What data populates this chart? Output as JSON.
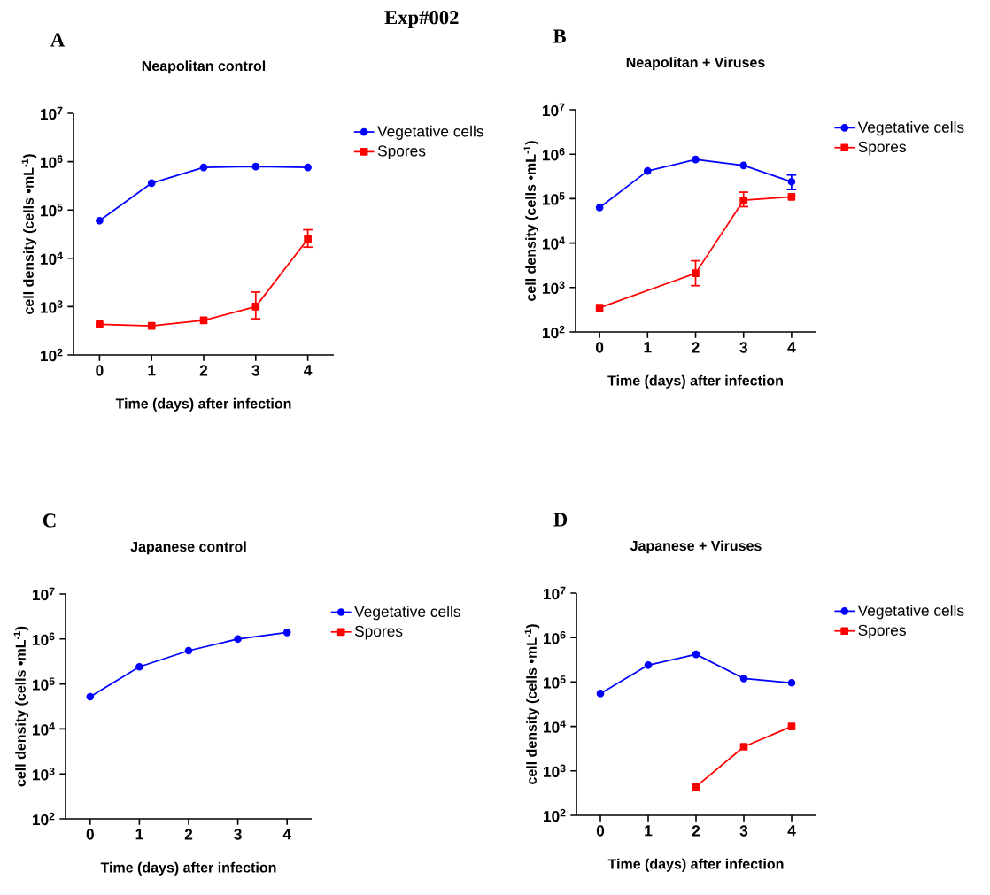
{
  "chart_data": [
    {
      "type": "line",
      "title": "Neapolitan control",
      "xlabel": "Time (days) after infection",
      "ylabel": "cell density (cells •mL$^{-1}$)",
      "annotations": [
        "A",
        "Exp#002"
      ],
      "log": true,
      "legend": "top right",
      "x": [
        0,
        1,
        2,
        3,
        4
      ],
      "xlim": [
        -0.5,
        4.5
      ],
      "xticks": [
        0,
        1,
        2,
        3,
        4
      ],
      "ylim": [
        100,
        10000000
      ],
      "yticks": [
        {
          "value": 100,
          "label": "10$^{2}$"
        },
        {
          "value": 1000,
          "label": "10$^{3}$"
        },
        {
          "value": 10000,
          "label": "10$^{4}$"
        },
        {
          "value": 100000,
          "label": "10$^{5}$"
        },
        {
          "value": 1000000,
          "label": "10$^{6}$"
        },
        {
          "value": 10000000,
          "label": "10$^{7}$"
        }
      ],
      "series": [
        {
          "name": "Vegetative cells",
          "color": "#0000ff",
          "marker": "circle",
          "values": [
            60000,
            360000,
            760000,
            790000,
            760000
          ]
        },
        {
          "name": "Spores",
          "color": "#ff0000",
          "marker": "square",
          "values": [
            430,
            400,
            520,
            1000,
            25000
          ],
          "errors": [
            null,
            null,
            null,
            [
              560,
              2000
            ],
            [
              17000,
              39000
            ]
          ]
        }
      ]
    },
    {
      "type": "line",
      "title": "Neapolitan + Viruses",
      "xlabel": "Time (days) after infection",
      "ylabel": "cell density (cells •mL$^{-1}$)",
      "annotations": [
        "B"
      ],
      "log": true,
      "legend": "top right",
      "x": [
        0,
        1,
        2,
        3,
        4
      ],
      "xlim": [
        -0.5,
        4.5
      ],
      "xticks": [
        0,
        1,
        2,
        3,
        4
      ],
      "ylim": [
        100,
        10000000
      ],
      "yticks": [
        {
          "value": 100,
          "label": "10$^{2}$"
        },
        {
          "value": 1000,
          "label": "10$^{3}$"
        },
        {
          "value": 10000,
          "label": "10$^{4}$"
        },
        {
          "value": 100000,
          "label": "10$^{5}$"
        },
        {
          "value": 1000000,
          "label": "10$^{6}$"
        },
        {
          "value": 10000000,
          "label": "10$^{7}$"
        }
      ],
      "series": [
        {
          "name": "Vegetative cells",
          "color": "#0000ff",
          "marker": "circle",
          "values": [
            63000,
            420000,
            760000,
            560000,
            240000
          ],
          "errors": [
            null,
            null,
            null,
            null,
            [
              160000,
              340000
            ]
          ]
        },
        {
          "name": "Spores",
          "color": "#ff0000",
          "marker": "square",
          "x": [
            0,
            2,
            3,
            4
          ],
          "values": [
            350,
            2100,
            92000,
            110000
          ],
          "errors": [
            null,
            [
              1100,
              4000
            ],
            [
              66000,
              140000
            ],
            null
          ]
        }
      ]
    },
    {
      "type": "line",
      "title": "Japanese control",
      "xlabel": "Time (days) after infection",
      "ylabel": "cell density (cells •mL$^{-1}$)",
      "annotations": [
        "C"
      ],
      "log": true,
      "legend": "top right",
      "x": [
        0,
        1,
        2,
        3,
        4
      ],
      "xlim": [
        -0.5,
        4.5
      ],
      "xticks": [
        0,
        1,
        2,
        3,
        4
      ],
      "ylim": [
        100,
        10000000
      ],
      "yticks": [
        {
          "value": 100,
          "label": "10$^{2}$"
        },
        {
          "value": 1000,
          "label": "10$^{3}$"
        },
        {
          "value": 10000,
          "label": "10$^{4}$"
        },
        {
          "value": 100000,
          "label": "10$^{5}$"
        },
        {
          "value": 1000000,
          "label": "10$^{6}$"
        },
        {
          "value": 10000000,
          "label": "10$^{7}$"
        }
      ],
      "series": [
        {
          "name": "Vegetative cells",
          "color": "#0000ff",
          "marker": "circle",
          "values": [
            52000,
            240000,
            550000,
            1000000,
            1400000
          ]
        },
        {
          "name": "Spores",
          "color": "#ff0000",
          "marker": "square",
          "values": [
            null,
            null,
            null,
            null,
            null
          ]
        }
      ]
    },
    {
      "type": "line",
      "title": "Japanese + Viruses",
      "xlabel": "Time (days) after infection",
      "ylabel": "cell density (cells •mL$^{-1}$)",
      "annotations": [
        "D"
      ],
      "log": true,
      "legend": "top right",
      "x": [
        0,
        1,
        2,
        3,
        4
      ],
      "xlim": [
        -0.5,
        4.5
      ],
      "xticks": [
        0,
        1,
        2,
        3,
        4
      ],
      "ylim": [
        100,
        10000000
      ],
      "yticks": [
        {
          "value": 100,
          "label": "10$^{2}$"
        },
        {
          "value": 1000,
          "label": "10$^{3}$"
        },
        {
          "value": 10000,
          "label": "10$^{4}$"
        },
        {
          "value": 100000,
          "label": "10$^{5}$"
        },
        {
          "value": 1000000,
          "label": "10$^{6}$"
        },
        {
          "value": 10000000,
          "label": "10$^{7}$"
        }
      ],
      "series": [
        {
          "name": "Vegetative cells",
          "color": "#0000ff",
          "marker": "circle",
          "values": [
            55000,
            240000,
            420000,
            120000,
            96000
          ]
        },
        {
          "name": "Spores",
          "color": "#ff0000",
          "marker": "square",
          "x": [
            2,
            3,
            4
          ],
          "values": [
            440,
            3500,
            10000
          ]
        }
      ]
    }
  ]
}
